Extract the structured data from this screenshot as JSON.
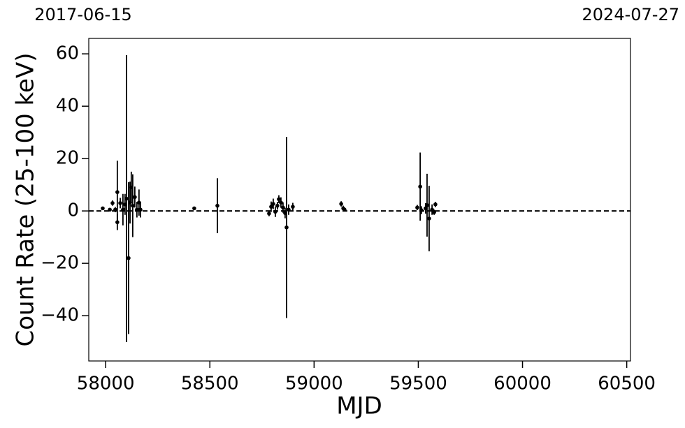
{
  "chart_data": {
    "type": "errorbar",
    "xlabel": "MJD",
    "ylabel": "Count Rate (25-100 keV)",
    "xlim": [
      57919,
      60518
    ],
    "ylim": [
      -57.3,
      65.9
    ],
    "xticks": [
      58000,
      58500,
      59000,
      59500,
      60000,
      60500
    ],
    "yticks": [
      {
        "value": -40,
        "label": "−40"
      },
      {
        "value": -20,
        "label": "−20"
      },
      0,
      20,
      40,
      60
    ],
    "x2ticks": [
      {
        "value": 57919,
        "label": "2017-06-15"
      },
      {
        "value": 60518,
        "label": "2024-07-27"
      }
    ],
    "hline": 0,
    "series": [
      {
        "color": "#000000",
        "x": [
          57986,
          58020,
          58033,
          58046,
          58056,
          58056,
          58070,
          58083,
          58093,
          58100,
          58110,
          58117,
          58123,
          58130,
          58140,
          58150,
          58160,
          58167,
          58425,
          58536,
          58784,
          58794,
          58804,
          58814,
          58824,
          58831,
          58841,
          58851,
          58861,
          58868,
          58878,
          58898,
          59130,
          59140,
          59146,
          59495,
          59509,
          59515,
          59535,
          59542,
          59552,
          59566,
          59576,
          59582
        ],
        "values": [
          1.0,
          0.5,
          3.0,
          0.5,
          7.2,
          -4.3,
          3.0,
          0.5,
          2.5,
          4.7,
          -18.0,
          3.2,
          9.0,
          2.0,
          5.3,
          0.5,
          3.2,
          0.5,
          1.0,
          2.0,
          -1.0,
          1.6,
          2.7,
          -0.3,
          2.0,
          4.5,
          3.2,
          1.3,
          -0.8,
          -6.3,
          0.5,
          1.6,
          2.7,
          1.0,
          0.5,
          1.3,
          9.3,
          0.3,
          1.0,
          2.2,
          -2.9,
          0.5,
          -0.5,
          2.5
        ],
        "errors": [
          0.5,
          0.5,
          1,
          1,
          12,
          3,
          2,
          6,
          4,
          54.8,
          29,
          8,
          6,
          12,
          4,
          3,
          5,
          3,
          0.5,
          10.5,
          1,
          2,
          2,
          2,
          1.5,
          1.5,
          2,
          2,
          2,
          34.6,
          2,
          1.5,
          1,
          1,
          0.5,
          1,
          13,
          1.5,
          2,
          12,
          12.5,
          2,
          1,
          1
        ]
      }
    ]
  }
}
